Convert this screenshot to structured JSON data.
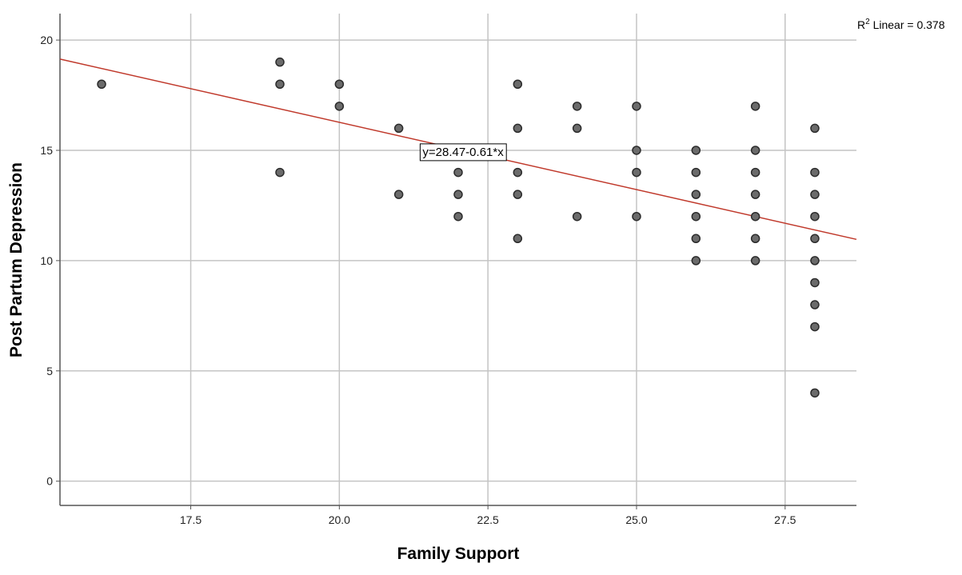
{
  "chart_data": {
    "type": "scatter",
    "title": "",
    "xlabel": "Family Support",
    "ylabel": "Post Partum Depression",
    "xlim": [
      15.3,
      28.7
    ],
    "ylim": [
      -1.1,
      21.2
    ],
    "xticks": [
      17.5,
      20.0,
      22.5,
      25.0,
      27.5
    ],
    "xtick_labels": [
      "17.5",
      "20.0",
      "22.5",
      "25.0",
      "27.5"
    ],
    "yticks": [
      0,
      5,
      10,
      15,
      20
    ],
    "ytick_labels": [
      "0",
      "5",
      "10",
      "15",
      "20"
    ],
    "grid": true,
    "legend": "none",
    "points": [
      {
        "x": 16,
        "y": 18
      },
      {
        "x": 19,
        "y": 19
      },
      {
        "x": 19,
        "y": 18
      },
      {
        "x": 19,
        "y": 14
      },
      {
        "x": 20,
        "y": 18
      },
      {
        "x": 20,
        "y": 17
      },
      {
        "x": 21,
        "y": 16
      },
      {
        "x": 21,
        "y": 13
      },
      {
        "x": 22,
        "y": 14
      },
      {
        "x": 22,
        "y": 13
      },
      {
        "x": 22,
        "y": 12
      },
      {
        "x": 23,
        "y": 18
      },
      {
        "x": 23,
        "y": 16
      },
      {
        "x": 23,
        "y": 14
      },
      {
        "x": 23,
        "y": 13
      },
      {
        "x": 23,
        "y": 11
      },
      {
        "x": 24,
        "y": 17
      },
      {
        "x": 24,
        "y": 16
      },
      {
        "x": 24,
        "y": 12
      },
      {
        "x": 25,
        "y": 17
      },
      {
        "x": 25,
        "y": 15
      },
      {
        "x": 25,
        "y": 14
      },
      {
        "x": 25,
        "y": 12
      },
      {
        "x": 26,
        "y": 15
      },
      {
        "x": 26,
        "y": 14
      },
      {
        "x": 26,
        "y": 13
      },
      {
        "x": 26,
        "y": 12
      },
      {
        "x": 26,
        "y": 11
      },
      {
        "x": 26,
        "y": 10
      },
      {
        "x": 27,
        "y": 17
      },
      {
        "x": 27,
        "y": 15
      },
      {
        "x": 27,
        "y": 14
      },
      {
        "x": 27,
        "y": 13
      },
      {
        "x": 27,
        "y": 12
      },
      {
        "x": 27,
        "y": 11
      },
      {
        "x": 27,
        "y": 10
      },
      {
        "x": 28,
        "y": 16
      },
      {
        "x": 28,
        "y": 14
      },
      {
        "x": 28,
        "y": 13
      },
      {
        "x": 28,
        "y": 12
      },
      {
        "x": 28,
        "y": 11
      },
      {
        "x": 28,
        "y": 10
      },
      {
        "x": 28,
        "y": 9
      },
      {
        "x": 28,
        "y": 8
      },
      {
        "x": 28,
        "y": 7
      },
      {
        "x": 28,
        "y": 4
      }
    ],
    "fit_line": {
      "intercept": 28.47,
      "slope": -0.61,
      "equation_label": "y=28.47-0.61*x"
    },
    "r2_label": {
      "prefix": "R",
      "superscript": "2",
      "text": " Linear = 0.378"
    },
    "colors": {
      "point_fill": "#6b6b6b",
      "point_stroke": "#2b2b2b",
      "fit_line": "#c0392b",
      "grid": "#c4c4c4",
      "axis": "#555555"
    }
  }
}
